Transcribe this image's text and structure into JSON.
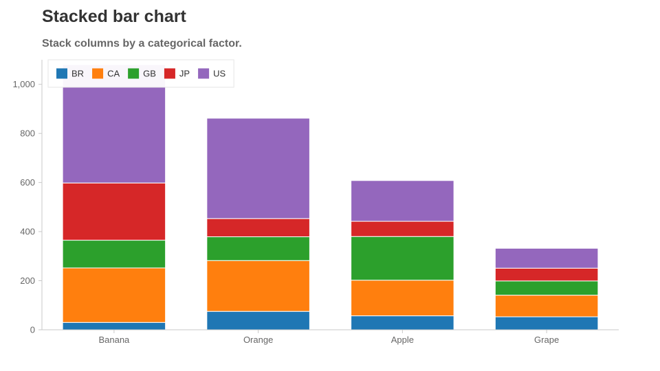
{
  "title": "Stacked bar chart",
  "subtitle": "Stack columns by a categorical factor.",
  "chart_data": {
    "type": "bar",
    "stacked": true,
    "categories": [
      "Banana",
      "Orange",
      "Apple",
      "Grape"
    ],
    "series": [
      {
        "name": "BR",
        "color": "#1f77b4",
        "values": [
          30,
          75,
          57,
          53
        ]
      },
      {
        "name": "CA",
        "color": "#ff7f0e",
        "values": [
          222,
          207,
          145,
          88
        ]
      },
      {
        "name": "GB",
        "color": "#2ca02c",
        "values": [
          113,
          97,
          178,
          58
        ]
      },
      {
        "name": "JP",
        "color": "#d62728",
        "values": [
          233,
          74,
          62,
          52
        ]
      },
      {
        "name": "US",
        "color": "#9467bd",
        "values": [
          482,
          409,
          166,
          81
        ]
      }
    ],
    "ylim": [
      0,
      1100
    ],
    "yticks": [
      0,
      200,
      400,
      600,
      800,
      1000
    ],
    "ytick_labels": [
      "0",
      "200",
      "400",
      "600",
      "800",
      "1,000"
    ],
    "grid": false,
    "legend_position": "top-left",
    "xlabel": "",
    "ylabel": ""
  }
}
